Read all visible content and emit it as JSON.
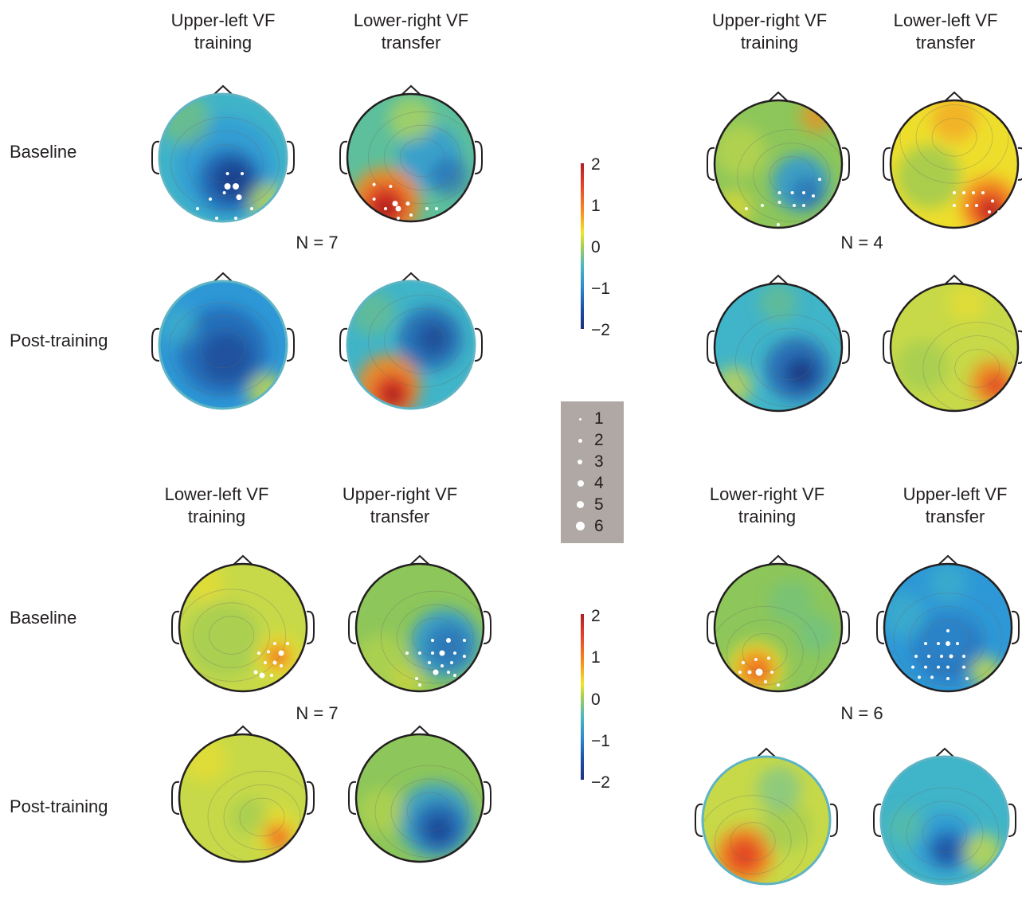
{
  "panels": [
    {
      "id": "A",
      "titles": [
        [
          "Upper-left VF",
          "training"
        ],
        [
          "Lower-right VF",
          "transfer"
        ]
      ],
      "n_label": "N = 7",
      "rows": [
        "Baseline",
        "Post-training"
      ]
    },
    {
      "id": "B",
      "titles": [
        [
          "Upper-right VF",
          "training"
        ],
        [
          "Lower-left VF",
          "transfer"
        ]
      ],
      "n_label": "N = 4",
      "rows": []
    },
    {
      "id": "C",
      "titles": [
        [
          "Lower-left VF",
          "training"
        ],
        [
          "Upper-right VF",
          "transfer"
        ]
      ],
      "n_label": "N = 7",
      "rows": [
        "Baseline",
        "Post-training"
      ]
    },
    {
      "id": "D",
      "titles": [
        [
          "Lower-right VF",
          "training"
        ],
        [
          "Upper-left VF",
          "transfer"
        ]
      ],
      "n_label": "N = 6",
      "rows": []
    }
  ],
  "colorbar": {
    "ticks": [
      "2",
      "1",
      "0",
      "−1",
      "−2"
    ],
    "range": [
      -2,
      2
    ],
    "colors": [
      "#b01e23",
      "#e8452b",
      "#f7941d",
      "#f2e52e",
      "#a6ce54",
      "#4ab8c0",
      "#2b8ad0",
      "#1b4ea2",
      "#1e2f80"
    ]
  },
  "dot_legend": {
    "values": [
      "1",
      "2",
      "3",
      "4",
      "5",
      "6"
    ]
  },
  "colors": {
    "background_head": "#4bb6c6",
    "legend_bg": "#b0a8a4",
    "dot": "#ffffff"
  }
}
